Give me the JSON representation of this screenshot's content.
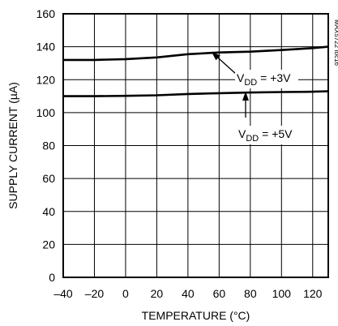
{
  "chart_data": {
    "type": "line",
    "xlabel": "TEMPERATURE (°C)",
    "ylabel": "SUPPLY CURRENT (µA)",
    "xlim": [
      -40,
      130
    ],
    "ylim": [
      0,
      160
    ],
    "x_ticks": [
      -40,
      -20,
      0,
      20,
      40,
      60,
      80,
      100,
      120
    ],
    "y_ticks": [
      0,
      20,
      40,
      60,
      80,
      100,
      120,
      140,
      160
    ],
    "grid": true,
    "figure_id": "MAX5722 toc16",
    "series": [
      {
        "name": "VDD = +3V",
        "label_main": "V",
        "label_sub": "DD",
        "label_rest": " = +3V",
        "x": [
          -40,
          -20,
          0,
          20,
          40,
          60,
          80,
          100,
          120,
          130
        ],
        "y": [
          132,
          132,
          132.5,
          133.5,
          135.5,
          136.5,
          137,
          138,
          139.2,
          140
        ]
      },
      {
        "name": "VDD = +5V",
        "label_main": "V",
        "label_sub": "DD",
        "label_rest": " = +5V",
        "x": [
          -40,
          -20,
          0,
          20,
          40,
          60,
          80,
          100,
          120,
          130
        ],
        "y": [
          110,
          110,
          110.2,
          110.5,
          111.3,
          111.8,
          112.2,
          112.5,
          112.7,
          113
        ]
      }
    ]
  }
}
